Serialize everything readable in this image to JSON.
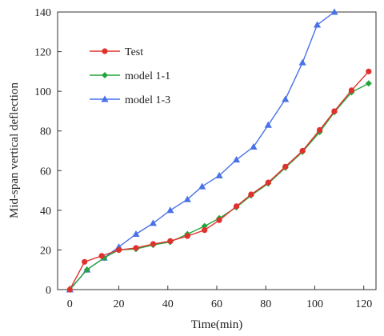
{
  "chart_data": {
    "type": "line",
    "title": "",
    "xlabel": "Time(min)",
    "ylabel": "Mid-span vertical deflection",
    "xlim": [
      -5,
      125
    ],
    "ylim": [
      0,
      140
    ],
    "xticks": [
      0,
      20,
      40,
      60,
      80,
      100,
      120
    ],
    "yticks": [
      0,
      20,
      40,
      60,
      80,
      100,
      120,
      140
    ],
    "grid": false,
    "legend_position": "top-left",
    "series": [
      {
        "name": "Test",
        "color": "#e0312c",
        "marker": "circle",
        "points": [
          [
            0,
            0
          ],
          [
            6,
            14
          ],
          [
            13,
            17
          ],
          [
            20,
            20
          ],
          [
            27,
            21
          ],
          [
            34,
            23
          ],
          [
            41,
            24.5
          ],
          [
            48,
            27
          ],
          [
            55,
            30
          ],
          [
            61,
            35
          ],
          [
            68,
            42
          ],
          [
            74,
            48
          ],
          [
            81,
            54
          ],
          [
            88,
            62
          ],
          [
            95,
            70
          ],
          [
            102,
            80.5
          ],
          [
            108,
            90
          ],
          [
            115,
            100.5
          ],
          [
            122,
            110
          ]
        ]
      },
      {
        "name": "model 1-1",
        "color": "#26a33b",
        "marker": "diamond",
        "points": [
          [
            0,
            0
          ],
          [
            7,
            10
          ],
          [
            14,
            16
          ],
          [
            20,
            20
          ],
          [
            27,
            20.5
          ],
          [
            34,
            22.5
          ],
          [
            41,
            24
          ],
          [
            48,
            28
          ],
          [
            55,
            32
          ],
          [
            61,
            36
          ],
          [
            68,
            41.5
          ],
          [
            74,
            47.5
          ],
          [
            81,
            53.5
          ],
          [
            88,
            61.5
          ],
          [
            95,
            69.5
          ],
          [
            102,
            79.5
          ],
          [
            108,
            89.5
          ],
          [
            115,
            99.5
          ],
          [
            122,
            104
          ]
        ]
      },
      {
        "name": "model 1-3",
        "color": "#4a72e8",
        "marker": "triangle",
        "points": [
          [
            0,
            0
          ],
          [
            7,
            10
          ],
          [
            14,
            16
          ],
          [
            20,
            21.5
          ],
          [
            27,
            28
          ],
          [
            34,
            33.5
          ],
          [
            41,
            40
          ],
          [
            48,
            45.5
          ],
          [
            54,
            52
          ],
          [
            61,
            57.5
          ],
          [
            68,
            65.5
          ],
          [
            75,
            72
          ],
          [
            81,
            83
          ],
          [
            88,
            96
          ],
          [
            95,
            114.5
          ],
          [
            101,
            133.5
          ],
          [
            108,
            140
          ]
        ]
      }
    ]
  }
}
